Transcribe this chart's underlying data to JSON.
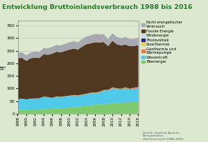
{
  "title": "Entwicklung Bruttoinlandsverbrauch 1988 bis 2016",
  "ylabel": "PJ",
  "background_color": "#dce8d0",
  "years": [
    1988,
    1989,
    1990,
    1991,
    1992,
    1993,
    1994,
    1995,
    1996,
    1997,
    1998,
    1999,
    2000,
    2001,
    2002,
    2003,
    2004,
    2005,
    2006,
    2007,
    2008,
    2009,
    2010,
    2011,
    2012,
    2013,
    2014,
    2015,
    2016
  ],
  "series": {
    "Bioenergie": [
      14,
      15,
      15,
      16,
      16,
      17,
      17,
      18,
      19,
      20,
      21,
      22,
      24,
      25,
      27,
      29,
      31,
      33,
      35,
      37,
      38,
      39,
      41,
      42,
      43,
      44,
      45,
      46,
      47
    ],
    "Wasserkraft": [
      43,
      44,
      41,
      43,
      44,
      43,
      50,
      47,
      43,
      47,
      45,
      46,
      46,
      47,
      44,
      45,
      46,
      48,
      46,
      47,
      53,
      52,
      60,
      55,
      52,
      56,
      50,
      52,
      54
    ],
    "Geothermie": [
      0.5,
      0.5,
      0.5,
      0.5,
      0.5,
      0.5,
      0.5,
      0.6,
      0.6,
      0.7,
      0.8,
      0.9,
      1.0,
      1.1,
      1.2,
      1.3,
      1.5,
      1.7,
      1.9,
      2.0,
      2.1,
      2.2,
      2.3,
      2.4,
      2.5,
      2.6,
      2.7,
      2.8,
      3.0
    ],
    "Solarthermie": [
      0.1,
      0.1,
      0.2,
      0.2,
      0.2,
      0.3,
      0.3,
      0.3,
      0.4,
      0.4,
      0.5,
      0.5,
      0.6,
      0.6,
      0.7,
      0.7,
      0.8,
      0.9,
      1.0,
      1.0,
      1.1,
      1.1,
      1.2,
      1.2,
      1.3,
      1.3,
      1.4,
      1.4,
      1.5
    ],
    "Photovoltaik": [
      0.0,
      0.0,
      0.0,
      0.0,
      0.0,
      0.0,
      0.0,
      0.0,
      0.0,
      0.0,
      0.0,
      0.0,
      0.0,
      0.0,
      0.0,
      0.0,
      0.0,
      0.0,
      0.0,
      0.1,
      0.1,
      0.1,
      0.2,
      0.3,
      0.5,
      0.8,
      1.1,
      1.4,
      1.7
    ],
    "Windenergie": [
      0.0,
      0.0,
      0.0,
      0.0,
      0.0,
      0.0,
      0.0,
      0.0,
      0.0,
      0.0,
      0.0,
      0.0,
      0.0,
      0.0,
      0.0,
      0.0,
      0.0,
      0.0,
      0.0,
      0.0,
      0.0,
      0.0,
      0.0,
      0.0,
      0.0,
      0.0,
      0.0,
      0.0,
      0.1
    ],
    "Fossile Energie": [
      163,
      162,
      153,
      160,
      162,
      160,
      168,
      168,
      175,
      178,
      176,
      180,
      183,
      185,
      182,
      191,
      197,
      196,
      200,
      196,
      190,
      174,
      185,
      175,
      172,
      170,
      168,
      165,
      165
    ],
    "Nicht energetisch": [
      22,
      22,
      22,
      23,
      24,
      24,
      25,
      26,
      27,
      27,
      28,
      28,
      29,
      29,
      29,
      30,
      31,
      32,
      33,
      32,
      31,
      28,
      30,
      29,
      29,
      30,
      29,
      29,
      30
    ]
  },
  "colors": {
    "Bioenergie": "#7ec870",
    "Wasserkraft": "#50c8e8",
    "Geothermie": "#e07848",
    "Solarthermie": "#e8d050",
    "Photovoltaik": "#282878",
    "Windenergie": "#c8d8e8",
    "Fossile Energie": "#503820",
    "Nicht energetisch": "#a8a8b0"
  },
  "legend_labels": [
    "Nicht energetischer\nVerbrauch",
    "Fossile Energie",
    "Windenergie",
    "Photovoltaik",
    "Solarthermie",
    "Geothermie und\nWärmepumpe",
    "Wasserkraft",
    "Bioenergie"
  ],
  "legend_keys": [
    "Nicht energetisch",
    "Fossile Energie",
    "Windenergie",
    "Photovoltaik",
    "Solarthermie",
    "Geothermie",
    "Wasserkraft",
    "Bioenergie"
  ],
  "source_text": "Quelle: Statistik Austria,\nEnergiebilanz\nOberösterreich 1988–2016",
  "ylim": [
    0,
    370
  ],
  "yticks": [
    0,
    50,
    100,
    150,
    200,
    250,
    300,
    350
  ]
}
